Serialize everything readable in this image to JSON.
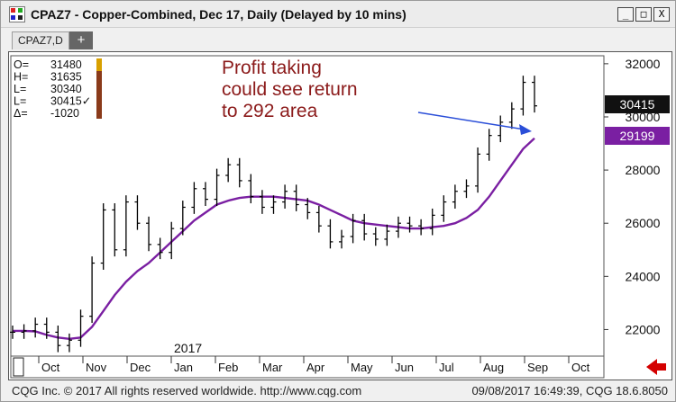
{
  "window": {
    "title": "CPAZ7 - Copper-Combined, Dec 17, Daily (Delayed by 10 mins)",
    "buttons": [
      "_",
      "□",
      "X"
    ]
  },
  "tabs": {
    "active": "CPAZ7,D",
    "add_label": "+"
  },
  "ohlc_box": {
    "rows": [
      {
        "label": "O=",
        "value": "31480"
      },
      {
        "label": "H=",
        "value": "31635"
      },
      {
        "label": "L=",
        "value": "30340"
      },
      {
        "label": "L=",
        "value": "30415✓"
      },
      {
        "label": "Δ=",
        "value": "-1020"
      }
    ]
  },
  "annotation": {
    "lines": [
      "Profit taking",
      "could see return",
      "to 292 area"
    ],
    "color": "#8b1a1a",
    "arrow_color": "#2a4ed8"
  },
  "badges": {
    "last": "30415",
    "ma": "29199",
    "last_color": "#111111",
    "ma_color": "#7a1fa2"
  },
  "year_label": "2017",
  "colors": {
    "price": "#000000",
    "ma": "#7a1fa2"
  },
  "chart_data": {
    "type": "line",
    "x": [
      "Sep",
      "Sep",
      "Oct",
      "Oct",
      "Oct",
      "Oct",
      "Nov",
      "Nov",
      "Nov",
      "Nov",
      "Dec",
      "Dec",
      "Dec",
      "Dec",
      "Jan",
      "Jan",
      "Jan",
      "Jan",
      "Feb",
      "Feb",
      "Feb",
      "Feb",
      "Mar",
      "Mar",
      "Mar",
      "Mar",
      "Apr",
      "Apr",
      "Apr",
      "Apr",
      "May",
      "May",
      "May",
      "May",
      "Jun",
      "Jun",
      "Jun",
      "Jun",
      "Jul",
      "Jul",
      "Jul",
      "Jul",
      "Aug",
      "Aug",
      "Aug",
      "Aug",
      "Sep"
    ],
    "series": [
      {
        "values": [
          21900,
          21950,
          22200,
          21900,
          21400,
          21600,
          22500,
          24500,
          26500,
          25000,
          26800,
          26000,
          25200,
          24900,
          25800,
          26600,
          27300,
          26900,
          27800,
          28200,
          27600,
          27000,
          26600,
          26800,
          27200,
          26700,
          26400,
          25900,
          25300,
          25500,
          26100,
          25600,
          25400,
          25700,
          26000,
          25900,
          25800,
          26300,
          26800,
          27200,
          27400,
          28600,
          29300,
          29800,
          30300,
          31300,
          30415
        ]
      },
      {
        "values": [
          21950,
          21950,
          21930,
          21800,
          21700,
          21650,
          21700,
          22100,
          22700,
          23300,
          23800,
          24200,
          24500,
          24900,
          25300,
          25700,
          26100,
          26400,
          26700,
          26850,
          26950,
          27000,
          27000,
          27000,
          26950,
          26900,
          26850,
          26700,
          26500,
          26300,
          26100,
          26000,
          25950,
          25900,
          25850,
          25800,
          25800,
          25850,
          25900,
          26000,
          26200,
          26500,
          27000,
          27600,
          28200,
          28800,
          29199
        ]
      }
    ],
    "y_ticks": [
      22000,
      24000,
      26000,
      28000,
      30000,
      32000
    ],
    "ylim": [
      21000,
      32300
    ],
    "x_ticks": [
      "Oct",
      "Nov",
      "Dec",
      "Jan",
      "Feb",
      "Mar",
      "Apr",
      "May",
      "Jun",
      "Jul",
      "Aug",
      "Sep",
      "Oct"
    ]
  },
  "status": {
    "left": "CQG Inc. © 2017 All rights reserved worldwide. http://www.cqg.com",
    "right": "09/08/2017 16:49:39, CQG 18.6.8050"
  }
}
